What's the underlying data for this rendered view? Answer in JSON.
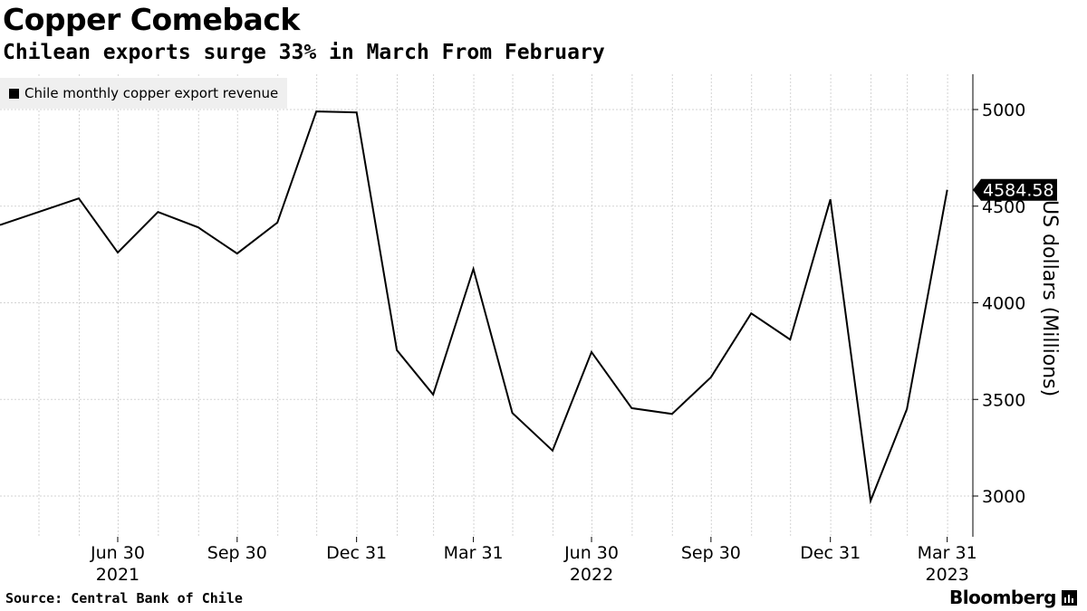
{
  "header": {
    "title": "Copper Comeback",
    "subtitle": "Chilean exports surge 33% in March From February"
  },
  "footer": {
    "source": "Source: Central Bank of Chile",
    "brand": "Bloomberg",
    "brand_icon": "bloomberg-terminal-icon"
  },
  "colors": {
    "line": "#000000",
    "grid": "#d3d3d3",
    "legend_bg": "#efefef",
    "badge_bg": "#000000",
    "badge_text": "#ffffff"
  },
  "chart_data": {
    "type": "line",
    "title": "Copper Comeback",
    "subtitle": "Chilean exports surge 33% in March From February",
    "ylabel": "US dollars (Millions)",
    "ylim": [
      2800,
      5200
    ],
    "yticks": [
      3000,
      3500,
      4000,
      4500,
      5000
    ],
    "y_axis_side": "right",
    "grid": true,
    "legend_position": "top-left",
    "x_ticks": [
      {
        "date": "2021-06-30",
        "label": "Jun 30"
      },
      {
        "date": "2021-09-30",
        "label": "Sep 30"
      },
      {
        "date": "2021-12-31",
        "label": "Dec 31"
      },
      {
        "date": "2022-03-31",
        "label": "Mar 31"
      },
      {
        "date": "2022-06-30",
        "label": "Jun 30"
      },
      {
        "date": "2022-09-30",
        "label": "Sep 30"
      },
      {
        "date": "2022-12-31",
        "label": "Dec 31"
      },
      {
        "date": "2023-03-31",
        "label": "Mar 31"
      }
    ],
    "year_labels": [
      {
        "date": "2021-06-30",
        "label": "2021"
      },
      {
        "date": "2022-06-30",
        "label": "2022"
      },
      {
        "date": "2023-03-31",
        "label": "2023"
      }
    ],
    "last_value_label": "4584.58",
    "series": [
      {
        "name": "Chile monthly copper export revenue",
        "color": "#000000",
        "points": [
          {
            "x": "2021-04-30",
            "y": 4470
          },
          {
            "x": "2021-05-31",
            "y": 4540
          },
          {
            "x": "2021-06-30",
            "y": 4260
          },
          {
            "x": "2021-07-31",
            "y": 4470
          },
          {
            "x": "2021-08-31",
            "y": 4390
          },
          {
            "x": "2021-09-30",
            "y": 4255
          },
          {
            "x": "2021-10-31",
            "y": 4415
          },
          {
            "x": "2021-11-30",
            "y": 4990
          },
          {
            "x": "2021-12-31",
            "y": 4985
          },
          {
            "x": "2022-01-31",
            "y": 3755
          },
          {
            "x": "2022-02-28",
            "y": 3525
          },
          {
            "x": "2022-03-31",
            "y": 4175
          },
          {
            "x": "2022-04-30",
            "y": 3430
          },
          {
            "x": "2022-05-31",
            "y": 3235
          },
          {
            "x": "2022-06-30",
            "y": 3745
          },
          {
            "x": "2022-07-31",
            "y": 3455
          },
          {
            "x": "2022-08-31",
            "y": 3425
          },
          {
            "x": "2022-09-30",
            "y": 3615
          },
          {
            "x": "2022-10-31",
            "y": 3945
          },
          {
            "x": "2022-11-30",
            "y": 3810
          },
          {
            "x": "2022-12-31",
            "y": 4535
          },
          {
            "x": "2023-01-31",
            "y": 2975
          },
          {
            "x": "2023-02-28",
            "y": 3450
          },
          {
            "x": "2023-03-31",
            "y": 4584.58
          }
        ]
      }
    ]
  }
}
